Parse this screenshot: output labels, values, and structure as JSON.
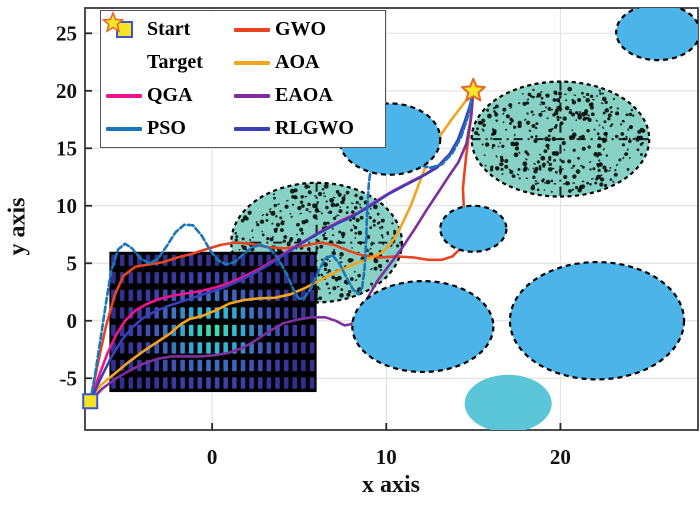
{
  "axes": {
    "xlabel": "x axis",
    "ylabel": "y axis",
    "xticks": [
      0,
      10,
      20
    ],
    "yticks": [
      25,
      20,
      15,
      10,
      5,
      0,
      -5
    ],
    "xlim": [
      -7.3,
      27.9
    ],
    "ylim": [
      -9.5,
      27.2
    ],
    "grid": true,
    "grid_color": "#e3e3e3",
    "spine_color": "#3a3a3a",
    "tick_label_color": "#111111"
  },
  "legend": {
    "columns": [
      [
        {
          "label": "Start",
          "marker": "square",
          "color": "#f5e426",
          "edge": "#3a56c8"
        },
        {
          "label": "Target",
          "marker": "star",
          "color": "#f8e62a",
          "edge": "#e8662a"
        },
        {
          "label": "QGA",
          "marker": "line",
          "color": "#ee1490"
        },
        {
          "label": "PSO",
          "marker": "line",
          "color": "#1b75bc"
        }
      ],
      [
        {
          "label": "GWO",
          "marker": "line",
          "color": "#e8441f"
        },
        {
          "label": "AOA",
          "marker": "line",
          "color": "#f2a41d"
        },
        {
          "label": "EAOA",
          "marker": "line",
          "color": "#7e2f9e"
        },
        {
          "label": "RLGWO",
          "marker": "line",
          "color": "#3a3fb8"
        }
      ]
    ]
  },
  "chart_data": {
    "type": "line",
    "title": "",
    "xlabel": "x axis",
    "ylabel": "y axis",
    "start": {
      "x": -7,
      "y": -7,
      "color": "#f5e426",
      "edge": "#3a56c8"
    },
    "target": {
      "x": 15,
      "y": 20,
      "color": "#f8e62a",
      "edge": "#e8662a"
    },
    "obstacles": {
      "rect": {
        "x0": -5.9,
        "x1": 6.0,
        "y0": -6.2,
        "y1": 6.0,
        "base": "#000000",
        "dash_colors": [
          "#3de6a6",
          "#2fb9d8",
          "#3b66c2",
          "#3c3da6",
          "#32308e"
        ]
      },
      "teal_ellipses": [
        {
          "cx": 6.0,
          "cy": 6.8,
          "rx": 4.9,
          "ry": 5.2,
          "fill": "#87d1c5"
        },
        {
          "cx": 20.0,
          "cy": 15.8,
          "rx": 5.1,
          "ry": 5.0,
          "fill": "#87d1c5"
        }
      ],
      "blue_ellipses": [
        {
          "cx": 25.6,
          "cy": 25.1,
          "rx": 2.4,
          "ry": 2.43,
          "fill": "#4cb4e8"
        },
        {
          "cx": 10.2,
          "cy": 15.8,
          "rx": 2.9,
          "ry": 3.1,
          "fill": "#4cb4e8"
        },
        {
          "cx": 15.0,
          "cy": 8.0,
          "rx": 1.9,
          "ry": 2.0,
          "fill": "#4cb4e8"
        },
        {
          "cx": 12.1,
          "cy": -0.5,
          "rx": 4.05,
          "ry": 3.95,
          "fill": "#4cb4e8"
        },
        {
          "cx": 22.1,
          "cy": 0.0,
          "rx": 5.0,
          "ry": 5.1,
          "fill": "#4cb4e8"
        }
      ],
      "cyan_ellipses": [
        {
          "cx": 17.0,
          "cy": -7.2,
          "rx": 2.5,
          "ry": 2.5,
          "fill": "#5ac6d8"
        }
      ]
    },
    "series": [
      {
        "name": "GWO",
        "color": "#e8441f",
        "dash": "none",
        "points": [
          [
            -7,
            -7
          ],
          [
            -6.6,
            -4
          ],
          [
            -6.1,
            -0.5
          ],
          [
            -5.6,
            2.2
          ],
          [
            -5.1,
            3.9
          ],
          [
            -4.4,
            4.7
          ],
          [
            -3.6,
            4.9
          ],
          [
            -2.8,
            5.1
          ],
          [
            -2,
            5.5
          ],
          [
            -1.2,
            5.8
          ],
          [
            -0.4,
            6.2
          ],
          [
            0.5,
            6.6
          ],
          [
            1.3,
            6.8
          ],
          [
            2.2,
            6.7
          ],
          [
            3.2,
            6.4
          ],
          [
            4.2,
            6.3
          ],
          [
            5.2,
            6.5
          ],
          [
            6.2,
            6.8
          ],
          [
            7,
            6.6
          ],
          [
            7.8,
            6.1
          ],
          [
            8.6,
            5.7
          ],
          [
            9.6,
            5.5
          ],
          [
            10.6,
            5.6
          ],
          [
            11.6,
            5.5
          ],
          [
            12.4,
            5.3
          ],
          [
            13.2,
            5.3
          ],
          [
            13.8,
            5.6
          ],
          [
            14.2,
            6.2
          ],
          [
            14.4,
            7
          ],
          [
            14.5,
            8.5
          ],
          [
            14.45,
            10
          ],
          [
            14.4,
            11.5
          ],
          [
            14.5,
            13
          ],
          [
            14.6,
            14.5
          ],
          [
            14.75,
            16.3
          ],
          [
            14.9,
            18
          ],
          [
            15,
            20
          ]
        ]
      },
      {
        "name": "AOA",
        "color": "#f2a41d",
        "dash": "none",
        "points": [
          [
            -7,
            -7
          ],
          [
            -6.4,
            -5.6
          ],
          [
            -5.6,
            -4.6
          ],
          [
            -4.8,
            -3.6
          ],
          [
            -4,
            -2.7
          ],
          [
            -3.2,
            -1.9
          ],
          [
            -2.4,
            -1.1
          ],
          [
            -1.8,
            -0.3
          ],
          [
            -1.3,
            0.15
          ],
          [
            -0.6,
            0.4
          ],
          [
            0.2,
            0.9
          ],
          [
            1,
            1.5
          ],
          [
            1.8,
            1.8
          ],
          [
            2.7,
            1.95
          ],
          [
            3.6,
            2
          ],
          [
            4.5,
            2.3
          ],
          [
            5.4,
            2.9
          ],
          [
            6.3,
            3.6
          ],
          [
            7.2,
            4.3
          ],
          [
            8.1,
            4.9
          ],
          [
            9,
            5.4
          ],
          [
            9.7,
            5.9
          ],
          [
            10.2,
            6.6
          ],
          [
            10.6,
            7.5
          ],
          [
            11,
            8.7
          ],
          [
            11.4,
            10
          ],
          [
            11.8,
            11.6
          ],
          [
            12.2,
            13.2
          ],
          [
            12.6,
            14.7
          ],
          [
            13.1,
            16.1
          ],
          [
            13.7,
            17.4
          ],
          [
            14.3,
            18.6
          ],
          [
            15,
            20
          ]
        ]
      },
      {
        "name": "QGA",
        "color": "#ee1490",
        "dash": "none",
        "points": [
          [
            -7,
            -7
          ],
          [
            -6.5,
            -4.8
          ],
          [
            -6,
            -2.8
          ],
          [
            -5.5,
            -1.2
          ],
          [
            -5,
            0
          ],
          [
            -4.4,
            0.9
          ],
          [
            -3.7,
            1.5
          ],
          [
            -3,
            1.9
          ],
          [
            -2.2,
            2.2
          ],
          [
            -1.4,
            2.4
          ],
          [
            -0.6,
            2.6
          ],
          [
            0.2,
            2.9
          ],
          [
            1,
            3.3
          ],
          [
            1.9,
            3.9
          ],
          [
            2.8,
            4.6
          ],
          [
            3.7,
            5.4
          ],
          [
            4.6,
            6.3
          ],
          [
            5.5,
            7.1
          ],
          [
            6.4,
            7.9
          ],
          [
            7.4,
            8.7
          ],
          [
            8.4,
            9.4
          ],
          [
            9.4,
            10.4
          ],
          [
            10.4,
            11.3
          ],
          [
            11.4,
            12.1
          ],
          [
            12.2,
            12.7
          ],
          [
            13,
            13.5
          ],
          [
            13.7,
            14.6
          ],
          [
            14.2,
            15.9
          ],
          [
            14.6,
            17.5
          ],
          [
            14.85,
            18.8
          ],
          [
            15,
            20
          ]
        ]
      },
      {
        "name": "EAOA",
        "color": "#7e2f9e",
        "dash": "none",
        "points": [
          [
            -7,
            -7
          ],
          [
            -6.3,
            -5.9
          ],
          [
            -5.5,
            -5
          ],
          [
            -4.7,
            -4.3
          ],
          [
            -3.9,
            -3.7
          ],
          [
            -3.1,
            -3.3
          ],
          [
            -2.3,
            -3.1
          ],
          [
            -1.5,
            -3.1
          ],
          [
            -0.7,
            -3.1
          ],
          [
            0.1,
            -3
          ],
          [
            0.9,
            -2.8
          ],
          [
            1.7,
            -2.4
          ],
          [
            2.5,
            -1.7
          ],
          [
            3.3,
            -0.9
          ],
          [
            4.1,
            -0.2
          ],
          [
            4.9,
            0.1
          ],
          [
            5.7,
            0.3
          ],
          [
            6.5,
            0.3
          ],
          [
            7.1,
            0
          ],
          [
            7.6,
            -0.4
          ],
          [
            8,
            -0.3
          ],
          [
            8.4,
            0.6
          ],
          [
            8.9,
            1.9
          ],
          [
            9.5,
            3.5
          ],
          [
            10.2,
            4.9
          ],
          [
            10.9,
            6.3
          ],
          [
            11.6,
            7.9
          ],
          [
            12.3,
            9.6
          ],
          [
            13,
            11.2
          ],
          [
            13.6,
            12.6
          ],
          [
            14.15,
            13.8
          ],
          [
            14.6,
            15.4
          ],
          [
            14.85,
            17.5
          ],
          [
            15,
            20
          ]
        ]
      },
      {
        "name": "RLGWO",
        "color": "#3a3fb8",
        "dash": "none",
        "points": [
          [
            -7,
            -7
          ],
          [
            -6.4,
            -5
          ],
          [
            -5.8,
            -3.2
          ],
          [
            -5.2,
            -1.7
          ],
          [
            -4.6,
            -0.6
          ],
          [
            -4,
            0.2
          ],
          [
            -3.3,
            0.8
          ],
          [
            -2.5,
            1.3
          ],
          [
            -1.7,
            1.7
          ],
          [
            -0.9,
            2.1
          ],
          [
            -0.1,
            2.5
          ],
          [
            0.7,
            2.9
          ],
          [
            1.6,
            3.5
          ],
          [
            2.5,
            4.2
          ],
          [
            3.4,
            5
          ],
          [
            4.3,
            5.9
          ],
          [
            5.2,
            6.8
          ],
          [
            6.1,
            7.6
          ],
          [
            7.1,
            8.4
          ],
          [
            8.1,
            9.1
          ],
          [
            9.1,
            10
          ],
          [
            10.1,
            11
          ],
          [
            11.1,
            11.8
          ],
          [
            12,
            12.5
          ],
          [
            12.9,
            13.3
          ],
          [
            13.6,
            14.4
          ],
          [
            14.1,
            15.7
          ],
          [
            14.5,
            17.3
          ],
          [
            14.8,
            18.7
          ],
          [
            15,
            20
          ]
        ]
      },
      {
        "name": "PSO",
        "color": "#1b75bc",
        "dash": "6 3",
        "points": [
          [
            -7,
            -7
          ],
          [
            -6.7,
            -4.5
          ],
          [
            -6.4,
            -1.5
          ],
          [
            -6.1,
            1.5
          ],
          [
            -5.8,
            4.3
          ],
          [
            -5.4,
            6.2
          ],
          [
            -5,
            6.7
          ],
          [
            -4.6,
            6.3
          ],
          [
            -4.1,
            5.4
          ],
          [
            -3.6,
            5
          ],
          [
            -3.1,
            5.4
          ],
          [
            -2.6,
            6.5
          ],
          [
            -2.1,
            7.7
          ],
          [
            -1.6,
            8.35
          ],
          [
            -1.1,
            8.3
          ],
          [
            -0.6,
            7.4
          ],
          [
            -0.1,
            6.1
          ],
          [
            0.3,
            5.3
          ],
          [
            0.8,
            4.9
          ],
          [
            1.3,
            5.1
          ],
          [
            1.8,
            5.8
          ],
          [
            2.3,
            6.4
          ],
          [
            2.8,
            6.6
          ],
          [
            3.3,
            6.3
          ],
          [
            3.8,
            5.4
          ],
          [
            4.3,
            4
          ],
          [
            4.7,
            2.6
          ],
          [
            5,
            1.9
          ],
          [
            5.3,
            2
          ],
          [
            5.7,
            2.9
          ],
          [
            6.1,
            4.3
          ],
          [
            6.5,
            5.4
          ],
          [
            6.9,
            5.7
          ],
          [
            7.3,
            5
          ],
          [
            7.7,
            3.8
          ],
          [
            8.1,
            2.7
          ],
          [
            8.4,
            2.3
          ],
          [
            8.6,
            2.8
          ],
          [
            8.75,
            4.5
          ],
          [
            8.85,
            7
          ],
          [
            8.9,
            9.5
          ],
          [
            9,
            12
          ],
          [
            9.1,
            13.1
          ],
          [
            9.5,
            13.5
          ],
          [
            10.2,
            13.4
          ],
          [
            11,
            13.4
          ],
          [
            11.8,
            13.6
          ],
          [
            12.5,
            13.3
          ],
          [
            13.2,
            13.6
          ],
          [
            13.8,
            14.6
          ],
          [
            14.3,
            16
          ],
          [
            14.7,
            17.8
          ],
          [
            15,
            20
          ]
        ]
      }
    ]
  }
}
